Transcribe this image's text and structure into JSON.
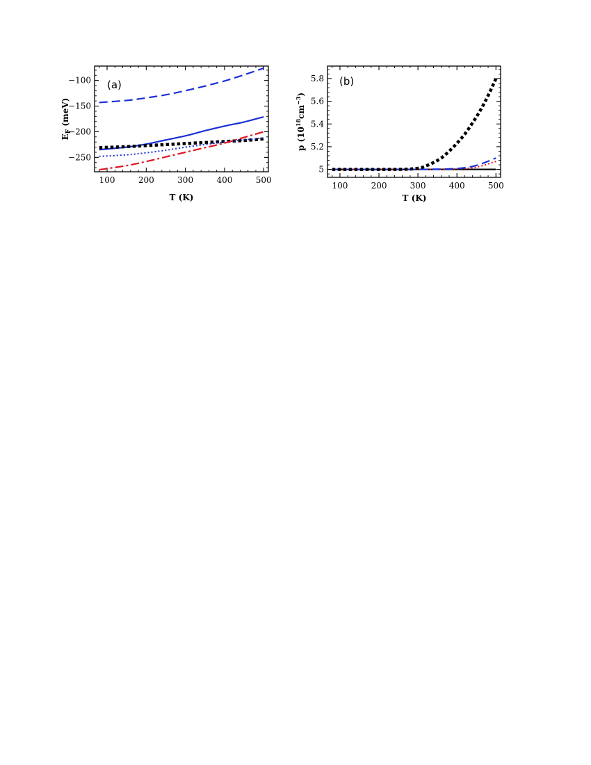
{
  "chart_data": [
    {
      "type": "line",
      "panel_label": "(a)",
      "xlabel": "T (K)",
      "ylabel": {
        "main": "E",
        "sub": "F",
        "unit": " (meV)"
      },
      "xlim": [
        68,
        512
      ],
      "ylim": [
        -278,
        -72
      ],
      "xticks": [
        100,
        200,
        300,
        400,
        500
      ],
      "yticks": [
        -250,
        -200,
        -150,
        -100
      ],
      "xtick_labels": [
        "100",
        "200",
        "300",
        "400",
        "500"
      ],
      "ytick_labels": [
        "−250",
        "−200",
        "−150",
        "−100"
      ],
      "series": [
        {
          "color": "#1a2fd6",
          "style": "dashed",
          "x": [
            80,
            150,
            200,
            250,
            300,
            350,
            400,
            450,
            500
          ],
          "y": [
            -143,
            -139,
            -134,
            -128,
            -120,
            -111,
            -101,
            -89,
            -76
          ]
        },
        {
          "color": "#1a2fd6",
          "style": "solid",
          "x": [
            80,
            150,
            200,
            250,
            300,
            350,
            400,
            450,
            500
          ],
          "y": [
            -235,
            -230,
            -224,
            -216,
            -208,
            -198,
            -189,
            -181,
            -171
          ]
        },
        {
          "color": "#000000",
          "style": "thick-dotted",
          "x": [
            80,
            150,
            200,
            250,
            300,
            350,
            400,
            450,
            500
          ],
          "y": [
            -231,
            -229,
            -227,
            -225,
            -223,
            -221,
            -219,
            -217,
            -214
          ]
        },
        {
          "color": "#1a2fd6",
          "style": "dotted",
          "x": [
            80,
            150,
            200,
            250,
            300,
            350,
            400,
            450,
            500
          ],
          "y": [
            -248,
            -245,
            -241,
            -236,
            -230,
            -225,
            -220,
            -216,
            -212
          ]
        },
        {
          "color": "#e0141e",
          "style": "dashdot",
          "x": [
            80,
            150,
            200,
            250,
            300,
            350,
            400,
            450,
            500
          ],
          "y": [
            -274,
            -266,
            -258,
            -249,
            -240,
            -231,
            -222,
            -211,
            -200
          ]
        }
      ]
    },
    {
      "type": "line",
      "panel_label": "(b)",
      "xlabel": "T (K)",
      "ylabel": {
        "main": "p (10",
        "sup1": "18",
        "mid": "cm",
        "sup2": "−3",
        "end": ")"
      },
      "xlim": [
        68,
        512
      ],
      "ylim": [
        4.93,
        5.91
      ],
      "xticks": [
        100,
        200,
        300,
        400,
        500
      ],
      "yticks": [
        5.0,
        5.2,
        5.4,
        5.6,
        5.8
      ],
      "xtick_labels": [
        "100",
        "200",
        "300",
        "400",
        "500"
      ],
      "ytick_labels": [
        "5",
        "5.2",
        "5.4",
        "5.6",
        "5.8"
      ],
      "series": [
        {
          "color": "#000000",
          "style": "solid",
          "x": [
            80,
            200,
            300,
            400,
            500
          ],
          "y": [
            5.0,
            5.0,
            5.0,
            5.0,
            5.0
          ]
        },
        {
          "color": "#e0141e",
          "style": "dotted",
          "x": [
            80,
            300,
            400,
            450,
            500
          ],
          "y": [
            5.0,
            5.0,
            5.005,
            5.02,
            5.07
          ]
        },
        {
          "color": "#1a2fd6",
          "style": "dashed",
          "x": [
            80,
            300,
            400,
            450,
            500
          ],
          "y": [
            5.0,
            5.0,
            5.008,
            5.035,
            5.1
          ]
        },
        {
          "color": "#000000",
          "style": "thick-dotted",
          "x": [
            80,
            250,
            300,
            320,
            340,
            360,
            380,
            400,
            420,
            440,
            460,
            480,
            500
          ],
          "y": [
            5.0,
            5.0,
            5.01,
            5.03,
            5.06,
            5.1,
            5.16,
            5.23,
            5.31,
            5.41,
            5.52,
            5.65,
            5.8
          ]
        }
      ]
    }
  ]
}
